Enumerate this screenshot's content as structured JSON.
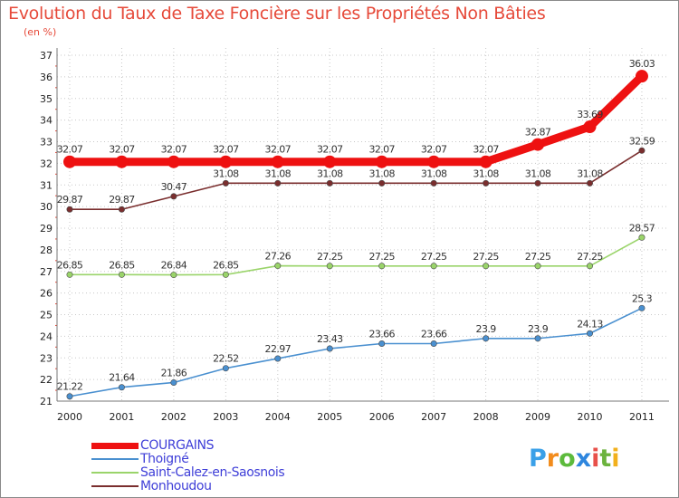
{
  "title": "Evolution du Taux de Taxe Foncière sur les Propriétés Non Bâties",
  "unit_label": "(en %)",
  "logo": {
    "text": "Proxiti",
    "letter_colors": [
      "#3aa0e8",
      "#f28c1c",
      "#5cba3c",
      "#2e86de",
      "#e8504a",
      "#6cb33e",
      "#f2b01c"
    ]
  },
  "chart_data": {
    "type": "line",
    "title": "Evolution du Taux de Taxe Foncière sur les Propriétés Non Bâties",
    "ylabel": "(en %)",
    "xlabel": "",
    "ylim": [
      21,
      37
    ],
    "yticks": [
      21,
      22,
      23,
      24,
      25,
      26,
      27,
      28,
      29,
      30,
      31,
      32,
      33,
      34,
      35,
      36,
      37
    ],
    "categories": [
      "2000",
      "2001",
      "2002",
      "2003",
      "2004",
      "2005",
      "2006",
      "2007",
      "2008",
      "2009",
      "2010",
      "2011"
    ],
    "legend_position": "bottom-left",
    "series": [
      {
        "name": "COURGAINS",
        "color": "#ee1111",
        "values": [
          32.07,
          32.07,
          32.07,
          32.07,
          32.07,
          32.07,
          32.07,
          32.07,
          32.07,
          32.87,
          33.69,
          36.03
        ],
        "labels": [
          "32.07",
          "32.07",
          "32.07",
          "32.07",
          "32.07",
          "32.07",
          "32.07",
          "32.07",
          "32.07",
          "32.87",
          "33.69",
          "36.03"
        ]
      },
      {
        "name": "Thoigné",
        "color": "#4a90d0",
        "values": [
          21.22,
          21.64,
          21.86,
          22.52,
          22.97,
          23.43,
          23.66,
          23.66,
          23.9,
          23.9,
          24.13,
          25.3
        ],
        "labels": [
          "21.22",
          "21.64",
          "21.86",
          "22.52",
          "22.97",
          "23.43",
          "23.66",
          "23.66",
          "23.9",
          "23.9",
          "24.13",
          "25.3"
        ]
      },
      {
        "name": "Saint-Calez-en-Saosnois",
        "color": "#9ad46a",
        "values": [
          26.85,
          26.85,
          26.84,
          26.85,
          27.26,
          27.25,
          27.25,
          27.25,
          27.25,
          27.25,
          27.25,
          28.57
        ],
        "labels": [
          "26.85",
          "26.85",
          "26.84",
          "26.85",
          "27.26",
          "27.25",
          "27.25",
          "27.25",
          "27.25",
          "27.25",
          "27.25",
          "28.57"
        ]
      },
      {
        "name": "Monhoudou",
        "color": "#7a2e2e",
        "values": [
          29.87,
          29.87,
          30.47,
          31.08,
          31.08,
          31.08,
          31.08,
          31.08,
          31.08,
          31.08,
          31.08,
          32.59
        ],
        "labels": [
          "29.87",
          "29.87",
          "30.47",
          "31.08",
          "31.08",
          "31.08",
          "31.08",
          "31.08",
          "31.08",
          "31.08",
          "31.08",
          "32.59"
        ]
      }
    ]
  }
}
